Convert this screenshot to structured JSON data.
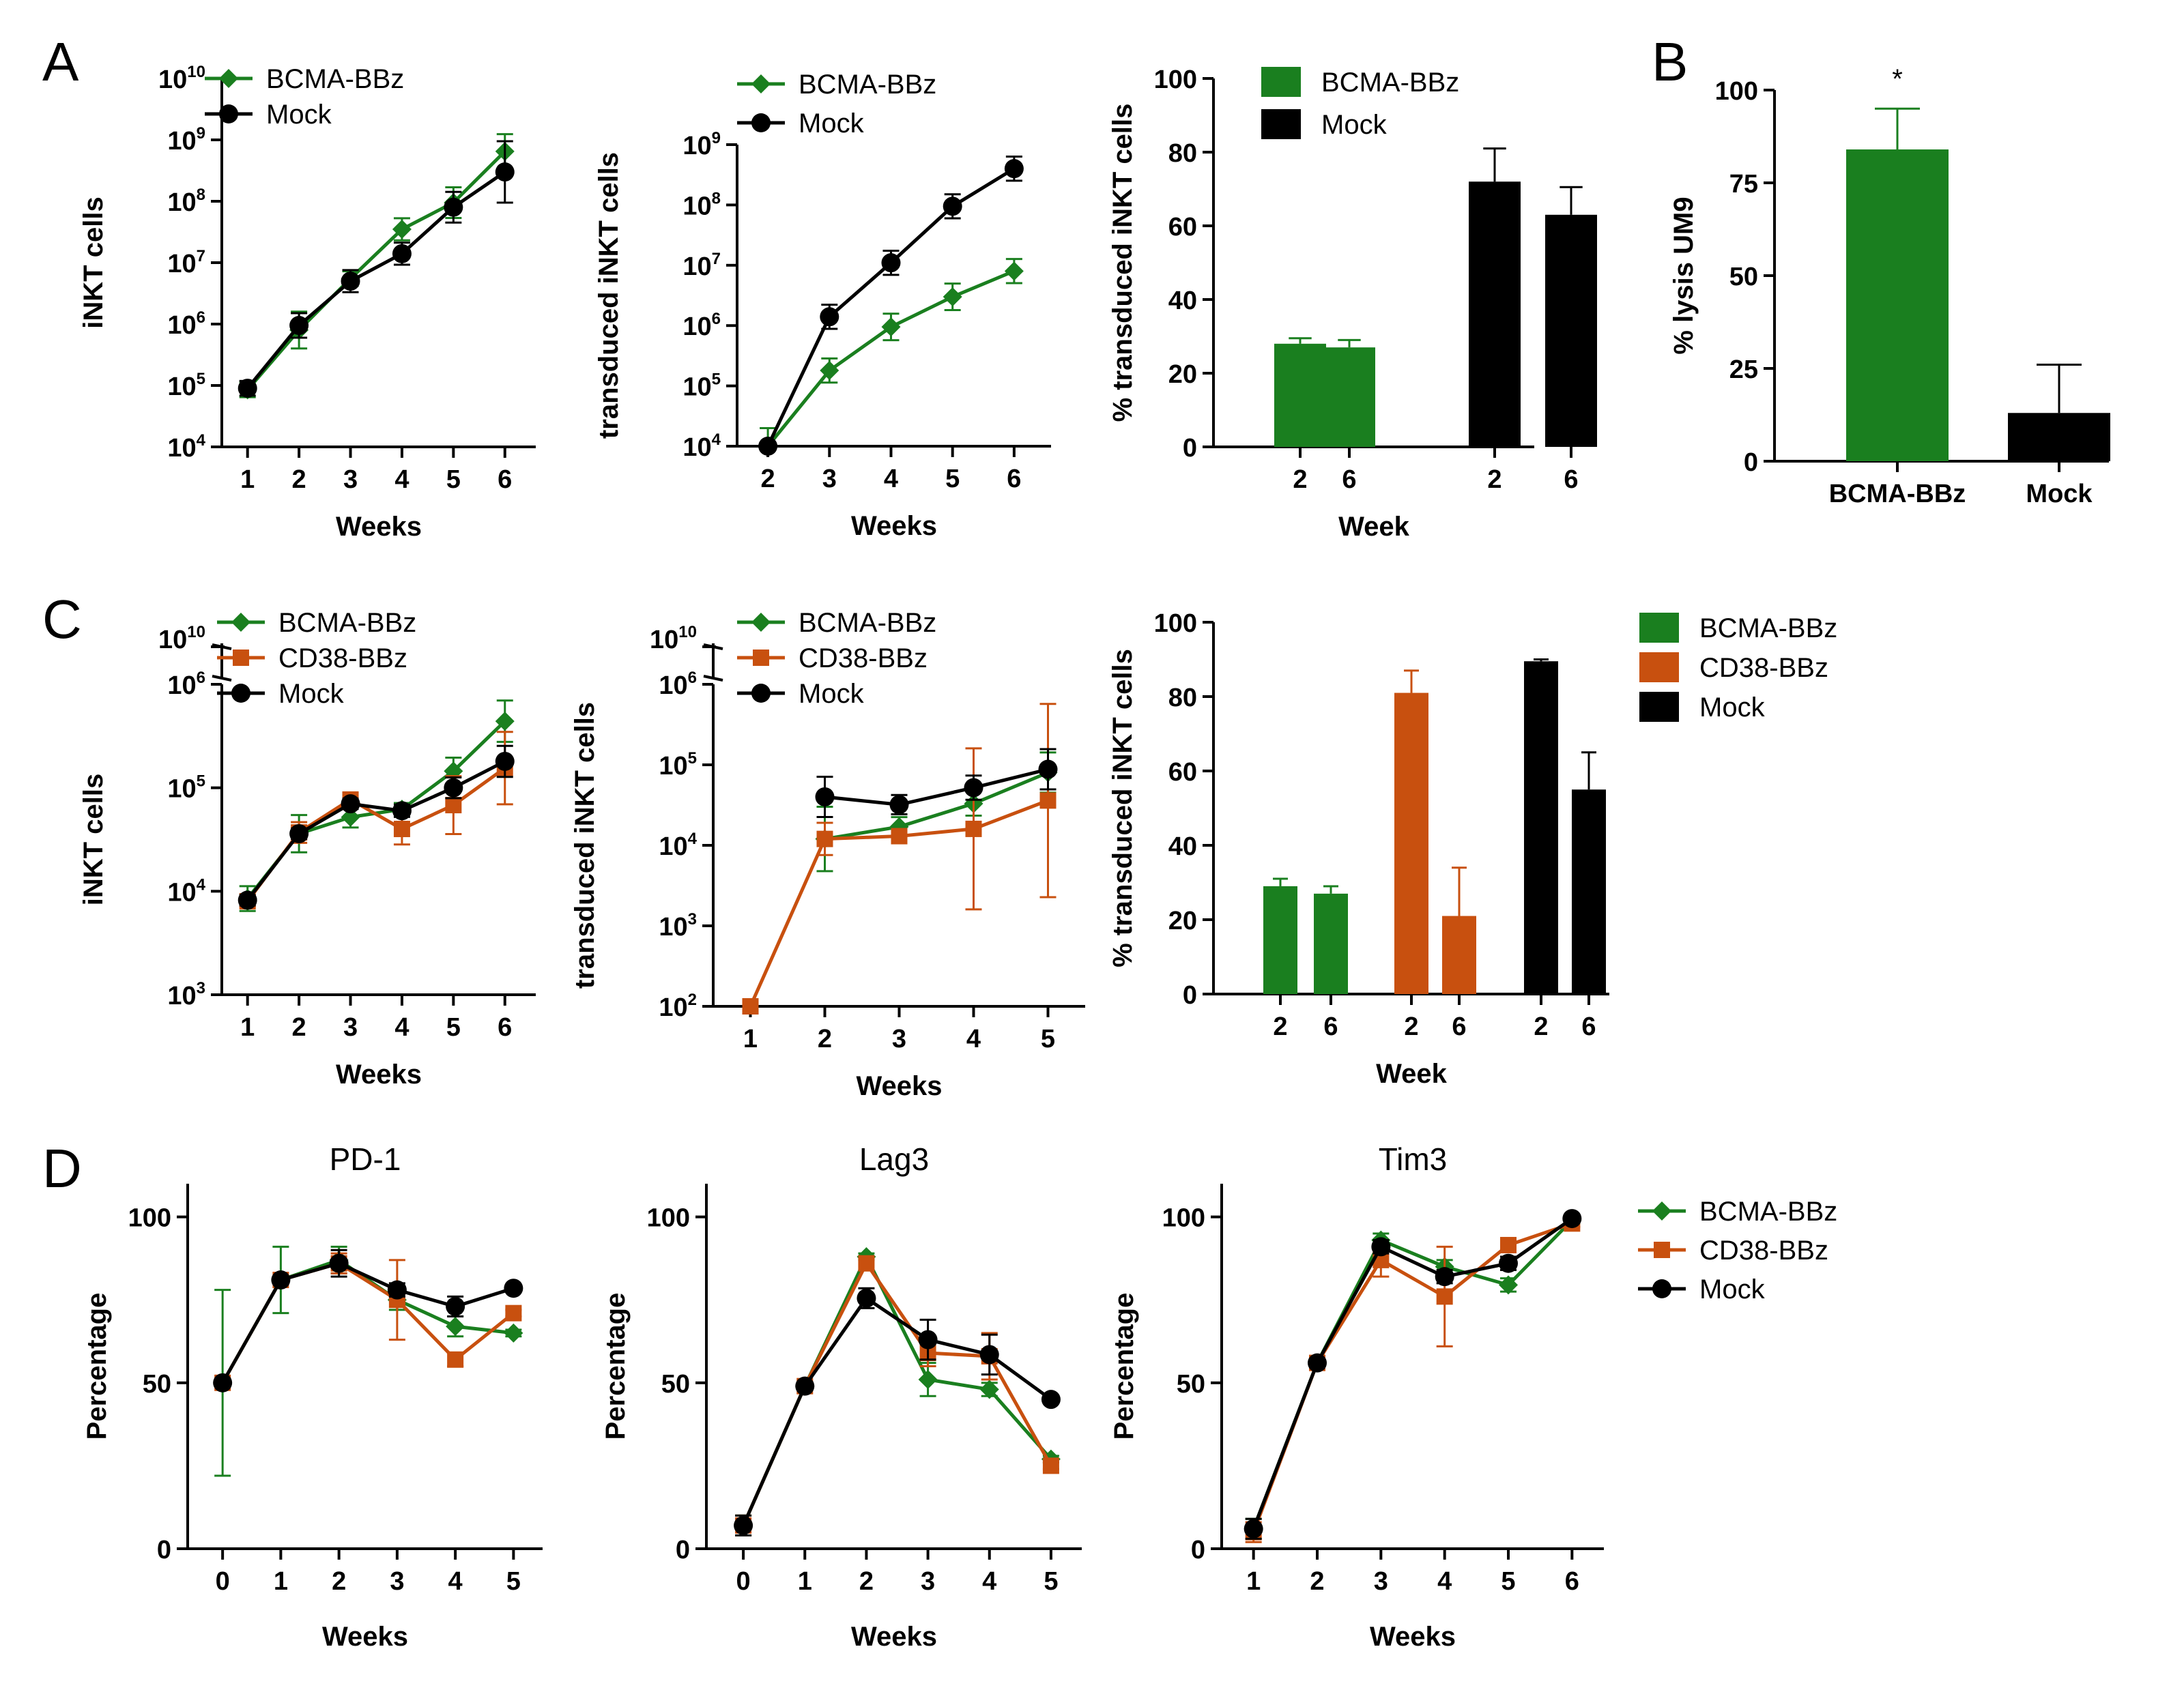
{
  "colors": {
    "BCMA-BBz": "#1a7f1f",
    "CD38-BBz": "#c8500f",
    "Mock": "#000000"
  },
  "panel_labels": {
    "A": "A",
    "B": "B",
    "C": "C",
    "D": "D"
  },
  "chart_data": [
    {
      "id": "A1",
      "type": "line",
      "yscale": "log",
      "xlabel": "Weeks",
      "ylabel": "iNKT cells",
      "x": [
        1,
        2,
        3,
        4,
        5,
        6
      ],
      "xlim": [
        0.5,
        6.6
      ],
      "ylim_exp": [
        4,
        10
      ],
      "legend": [
        "BCMA-BBz",
        "Mock"
      ],
      "series": [
        {
          "name": "BCMA-BBz",
          "values": [
            85000,
            800000,
            5500000,
            35000000,
            95000000,
            650000000
          ],
          "err": [
            0.12,
            0.3,
            0.12,
            0.18,
            0.25,
            0.28
          ]
        },
        {
          "name": "Mock",
          "values": [
            90000,
            950000,
            5000000,
            14000000,
            80000000,
            300000000
          ],
          "err": [
            0.12,
            0.2,
            0.18,
            0.18,
            0.25,
            0.5
          ]
        }
      ]
    },
    {
      "id": "A2",
      "type": "line",
      "yscale": "log",
      "xlabel": "Weeks",
      "ylabel": "transduced iNKT cells",
      "x": [
        2,
        3,
        4,
        5,
        6
      ],
      "xlim": [
        1.5,
        6.6
      ],
      "ylim_exp": [
        4,
        9
      ],
      "legend": [
        "BCMA-BBz",
        "Mock"
      ],
      "series": [
        {
          "name": "BCMA-BBz",
          "values": [
            10000,
            180000,
            950000,
            3000000,
            8000000
          ],
          "err": [
            0.3,
            0.2,
            0.22,
            0.22,
            0.2
          ]
        },
        {
          "name": "Mock",
          "values": [
            10000,
            1400000,
            11000000,
            95000000,
            400000000
          ],
          "err": [
            0.05,
            0.2,
            0.2,
            0.2,
            0.2
          ]
        }
      ]
    },
    {
      "id": "A3",
      "type": "bar",
      "xlabel": "Week",
      "ylabel": "% transduced iNKT cells",
      "categories": [
        "2",
        "6",
        "2",
        "6"
      ],
      "ylim": [
        0,
        100
      ],
      "yticks": [
        0,
        20,
        40,
        60,
        80,
        100
      ],
      "legend": [
        "BCMA-BBz",
        "Mock"
      ],
      "groups": [
        {
          "name": "BCMA-BBz",
          "values": [
            28,
            27
          ],
          "err": [
            1.5,
            2
          ]
        },
        {
          "name": "Mock",
          "values": [
            72,
            63
          ],
          "err": [
            9,
            7.5
          ]
        }
      ]
    },
    {
      "id": "B",
      "type": "bar",
      "xlabel": "",
      "ylabel": "% lysis UM9",
      "categories": [
        "BCMA-BBz",
        "Mock"
      ],
      "ylim": [
        0,
        100
      ],
      "yticks": [
        0,
        25,
        50,
        75,
        100
      ],
      "values": [
        84,
        13
      ],
      "err": [
        11,
        13
      ],
      "annotation": "*"
    },
    {
      "id": "C1",
      "type": "line",
      "yscale": "log",
      "xlabel": "Weeks",
      "ylabel": "iNKT cells",
      "x": [
        1,
        2,
        3,
        4,
        5,
        6
      ],
      "xlim": [
        0.5,
        6.6
      ],
      "ylim_exp": [
        3,
        6
      ],
      "break_top_exp": 10,
      "legend": [
        "BCMA-BBz",
        "CD38-BBz",
        "Mock"
      ],
      "series": [
        {
          "name": "BCMA-BBz",
          "values": [
            8500,
            36000,
            52000,
            62000,
            145000,
            440000
          ],
          "err": [
            0.12,
            0.18,
            0.1,
            0.06,
            0.13,
            0.2
          ]
        },
        {
          "name": "CD38-BBz",
          "values": [
            8000,
            37000,
            77000,
            40000,
            68000,
            155000
          ],
          "err": [
            0.05,
            0.1,
            0.06,
            0.15,
            0.28,
            0.35
          ]
        },
        {
          "name": "Mock",
          "values": [
            8200,
            36000,
            70000,
            60000,
            100000,
            180000
          ],
          "err": [
            0.05,
            0.05,
            0.05,
            0.06,
            0.1,
            0.15
          ]
        }
      ]
    },
    {
      "id": "C2",
      "type": "line",
      "yscale": "log",
      "xlabel": "Weeks",
      "ylabel": "transduced iNKT cells",
      "x": [
        1,
        2,
        3,
        4,
        5
      ],
      "xlim": [
        0.5,
        5.5
      ],
      "ylim_exp": [
        2,
        6
      ],
      "break_top_exp": 10,
      "legend": [
        "BCMA-BBz",
        "CD38-BBz",
        "Mock"
      ],
      "series": [
        {
          "name": "BCMA-BBz",
          "values": [
            null,
            12000,
            17000,
            33000,
            80000
          ],
          "err": [
            0,
            0.4,
            0.12,
            0.15,
            0.25
          ]
        },
        {
          "name": "CD38-BBz",
          "values": [
            100,
            12000,
            13000,
            16000,
            36000
          ],
          "err": [
            0,
            0.2,
            0.05,
            1.0,
            1.2
          ]
        },
        {
          "name": "Mock",
          "values": [
            null,
            40000,
            32000,
            52000,
            88000
          ],
          "err": [
            0,
            0.25,
            0.12,
            0.15,
            0.25
          ]
        }
      ]
    },
    {
      "id": "C3",
      "type": "bar",
      "xlabel": "Week",
      "ylabel": "% transduced iNKT cells",
      "categories": [
        "2",
        "6",
        "2",
        "6",
        "2",
        "6"
      ],
      "ylim": [
        0,
        100
      ],
      "yticks": [
        0,
        20,
        40,
        60,
        80,
        100
      ],
      "legend": [
        "BCMA-BBz",
        "CD38-BBz",
        "Mock"
      ],
      "groups": [
        {
          "name": "BCMA-BBz",
          "values": [
            29,
            27
          ],
          "err": [
            2,
            2
          ]
        },
        {
          "name": "CD38-BBz",
          "values": [
            81,
            21
          ],
          "err": [
            6,
            13
          ]
        },
        {
          "name": "Mock",
          "values": [
            89.5,
            55
          ],
          "err": [
            0.5,
            10
          ]
        }
      ]
    },
    {
      "id": "D1",
      "type": "line",
      "title": "PD-1",
      "xlabel": "Weeks",
      "ylabel": "Percentage",
      "x": [
        0,
        1,
        2,
        3,
        4,
        5
      ],
      "xlim": [
        -0.6,
        5.5
      ],
      "ylim": [
        0,
        110
      ],
      "yticks": [
        0,
        50,
        100
      ],
      "series": [
        {
          "name": "BCMA-BBz",
          "values": [
            50,
            81,
            87,
            75,
            67,
            65
          ],
          "err": [
            28,
            10,
            4,
            3,
            3,
            1
          ]
        },
        {
          "name": "CD38-BBz",
          "values": [
            50,
            81,
            86,
            75,
            57,
            71
          ],
          "err": [
            1,
            1,
            3,
            12,
            2,
            1
          ]
        },
        {
          "name": "Mock",
          "values": [
            50,
            81,
            86,
            78,
            73,
            78.5
          ],
          "err": [
            1,
            1,
            4,
            2,
            3,
            1
          ]
        }
      ]
    },
    {
      "id": "D2",
      "type": "line",
      "title": "Lag3",
      "xlabel": "Weeks",
      "ylabel": "Percentage",
      "x": [
        0,
        1,
        2,
        3,
        4,
        5
      ],
      "xlim": [
        -0.6,
        5.5
      ],
      "ylim": [
        0,
        110
      ],
      "yticks": [
        0,
        50,
        100
      ],
      "series": [
        {
          "name": "BCMA-BBz",
          "values": [
            7,
            49,
            88,
            51,
            48,
            27
          ],
          "err": [
            3,
            1,
            1,
            5,
            2,
            1
          ]
        },
        {
          "name": "CD38-BBz",
          "values": [
            7,
            49,
            86,
            59,
            58,
            25
          ],
          "err": [
            3,
            1,
            2,
            4,
            7,
            1
          ]
        },
        {
          "name": "Mock",
          "values": [
            7,
            49,
            75.5,
            63,
            58.5,
            45
          ],
          "err": [
            3,
            1,
            3,
            6,
            6,
            1
          ]
        }
      ]
    },
    {
      "id": "D3",
      "type": "line",
      "title": "Tim3",
      "xlabel": "Weeks",
      "ylabel": "Percentage",
      "x": [
        1,
        2,
        3,
        4,
        5,
        6
      ],
      "xlim": [
        0.5,
        6.5
      ],
      "ylim": [
        0,
        110
      ],
      "yticks": [
        0,
        50,
        100
      ],
      "legend": [
        "BCMA-BBz",
        "CD38-BBz",
        "Mock"
      ],
      "series": [
        {
          "name": "BCMA-BBz",
          "values": [
            6,
            56,
            93,
            85,
            79.5,
            99
          ],
          "err": [
            3,
            1,
            2,
            2,
            2,
            1
          ]
        },
        {
          "name": "CD38-BBz",
          "values": [
            5,
            56,
            87,
            76,
            91.5,
            98
          ],
          "err": [
            3,
            1,
            5,
            15,
            1,
            1
          ]
        },
        {
          "name": "Mock",
          "values": [
            6,
            56,
            91,
            82,
            86,
            99.5
          ],
          "err": [
            3,
            1,
            2,
            2,
            2,
            1
          ]
        }
      ]
    }
  ]
}
